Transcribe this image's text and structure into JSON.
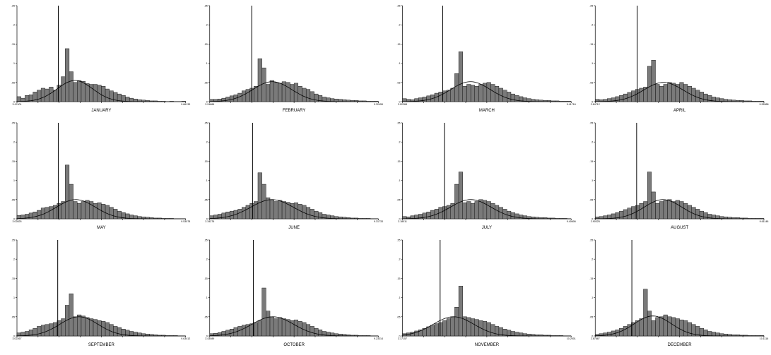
{
  "colors": {
    "bar_fill": "#7a7a7a",
    "bar_stroke": "#000000",
    "axis": "#000000",
    "curve": "#000000",
    "background": "#ffffff"
  },
  "chart_data": [
    {
      "type": "bar",
      "title": "JANUARY",
      "xlim": [
        3.47401,
        9.66133
      ],
      "ylim": [
        0,
        0.25
      ],
      "x_tick_labels": [
        "3.47401",
        "9.66133"
      ],
      "y_tick_labels": [
        "0",
        ".05",
        ".1",
        ".15",
        ".2",
        ".25"
      ],
      "spike": {
        "x": 4.99,
        "height": 0.25
      },
      "values": [
        0.013,
        0.009,
        0.016,
        0.018,
        0.025,
        0.03,
        0.035,
        0.033,
        0.038,
        0.03,
        0.043,
        0.065,
        0.138,
        0.078,
        0.05,
        0.055,
        0.053,
        0.047,
        0.045,
        0.045,
        0.043,
        0.04,
        0.033,
        0.028,
        0.024,
        0.02,
        0.016,
        0.012,
        0.009,
        0.007,
        0.005,
        0.004,
        0.003,
        0.002,
        0.002,
        0.001,
        0.001,
        0,
        0.001,
        0,
        0,
        0.001
      ],
      "normal_curve": {
        "mean": 5.6,
        "sd": 0.65,
        "peak": 0.055
      }
    },
    {
      "type": "bar",
      "title": "FEBRUARY",
      "xlim": [
        3.24666,
        9.32459
      ],
      "ylim": [
        0,
        0.25
      ],
      "x_tick_labels": [
        "3.24666",
        "9.32459"
      ],
      "y_tick_labels": [
        "0",
        ".05",
        ".1",
        ".15",
        ".2",
        ".25"
      ],
      "spike": {
        "x": 4.76,
        "height": 0.25
      },
      "values": [
        0.006,
        0.006,
        0.007,
        0.009,
        0.012,
        0.015,
        0.018,
        0.022,
        0.028,
        0.032,
        0.035,
        0.04,
        0.112,
        0.088,
        0.045,
        0.055,
        0.05,
        0.048,
        0.052,
        0.05,
        0.045,
        0.048,
        0.04,
        0.035,
        0.032,
        0.026,
        0.02,
        0.016,
        0.012,
        0.01,
        0.008,
        0.007,
        0.006,
        0.005,
        0.004,
        0.003,
        0.003,
        0.002,
        0.002,
        0.001,
        0.001,
        0.001
      ],
      "normal_curve": {
        "mean": 5.5,
        "sd": 0.7,
        "peak": 0.052
      }
    },
    {
      "type": "bar",
      "title": "MARCH",
      "xlim": [
        3.02268,
        9.41716
      ],
      "ylim": [
        0,
        0.25
      ],
      "x_tick_labels": [
        "3.02268",
        "9.41716"
      ],
      "y_tick_labels": [
        "0",
        ".05",
        ".1",
        ".15",
        ".2",
        ".25"
      ],
      "spike": {
        "x": 4.55,
        "height": 0.25
      },
      "values": [
        0.008,
        0.006,
        0.005,
        0.008,
        0.01,
        0.012,
        0.015,
        0.018,
        0.022,
        0.025,
        0.028,
        0.03,
        0.035,
        0.073,
        0.13,
        0.04,
        0.045,
        0.043,
        0.04,
        0.045,
        0.048,
        0.05,
        0.045,
        0.04,
        0.035,
        0.03,
        0.025,
        0.02,
        0.016,
        0.013,
        0.01,
        0.008,
        0.006,
        0.005,
        0.004,
        0.003,
        0.003,
        0.002,
        0.002,
        0.001,
        0.001,
        0.001
      ],
      "normal_curve": {
        "mean": 5.6,
        "sd": 0.75,
        "peak": 0.052
      }
    },
    {
      "type": "bar",
      "title": "APRIL",
      "xlim": [
        2.84712,
        9.28388
      ],
      "ylim": [
        0,
        0.25
      ],
      "x_tick_labels": [
        "2.84712",
        "9.28388"
      ],
      "y_tick_labels": [
        "0",
        ".05",
        ".1",
        ".15",
        ".2",
        ".25"
      ],
      "spike": {
        "x": 4.45,
        "height": 0.25
      },
      "values": [
        0.006,
        0.005,
        0.006,
        0.008,
        0.01,
        0.013,
        0.016,
        0.02,
        0.024,
        0.028,
        0.032,
        0.035,
        0.038,
        0.092,
        0.108,
        0.045,
        0.04,
        0.045,
        0.05,
        0.048,
        0.045,
        0.05,
        0.045,
        0.04,
        0.035,
        0.03,
        0.025,
        0.02,
        0.016,
        0.012,
        0.01,
        0.008,
        0.006,
        0.005,
        0.004,
        0.003,
        0.003,
        0.002,
        0.002,
        0.001,
        0.001,
        0.001
      ],
      "normal_curve": {
        "mean": 5.45,
        "sd": 0.75,
        "peak": 0.05
      }
    },
    {
      "type": "bar",
      "title": "MAY",
      "xlim": [
        3.02825,
        9.53078
      ],
      "ylim": [
        0,
        0.25
      ],
      "x_tick_labels": [
        "3.02825",
        "9.53078"
      ],
      "y_tick_labels": [
        "0",
        ".05",
        ".1",
        ".15",
        ".2",
        ".25"
      ],
      "spike": {
        "x": 4.62,
        "height": 0.25
      },
      "values": [
        0.009,
        0.01,
        0.012,
        0.015,
        0.018,
        0.022,
        0.028,
        0.03,
        0.032,
        0.035,
        0.04,
        0.045,
        0.14,
        0.09,
        0.045,
        0.04,
        0.045,
        0.048,
        0.045,
        0.04,
        0.042,
        0.038,
        0.035,
        0.03,
        0.025,
        0.02,
        0.016,
        0.013,
        0.01,
        0.008,
        0.006,
        0.005,
        0.004,
        0.003,
        0.002,
        0.002,
        0.001,
        0.001,
        0.001,
        0,
        0,
        0
      ],
      "normal_curve": {
        "mean": 5.3,
        "sd": 0.75,
        "peak": 0.05
      }
    },
    {
      "type": "bar",
      "title": "JUNE",
      "xlim": [
        3.34276,
        9.31733
      ],
      "ylim": [
        0,
        0.25
      ],
      "x_tick_labels": [
        "3.34276",
        "9.31733"
      ],
      "y_tick_labels": [
        "0",
        ".05",
        ".1",
        ".15",
        ".2",
        ".25"
      ],
      "spike": {
        "x": 4.86,
        "height": 0.25
      },
      "values": [
        0.008,
        0.01,
        0.012,
        0.015,
        0.018,
        0.02,
        0.022,
        0.025,
        0.03,
        0.035,
        0.04,
        0.045,
        0.12,
        0.09,
        0.055,
        0.05,
        0.045,
        0.048,
        0.045,
        0.043,
        0.04,
        0.042,
        0.038,
        0.035,
        0.03,
        0.025,
        0.02,
        0.016,
        0.012,
        0.01,
        0.008,
        0.006,
        0.005,
        0.004,
        0.003,
        0.002,
        0.002,
        0.001,
        0.001,
        0.001,
        0,
        0
      ],
      "normal_curve": {
        "mean": 5.55,
        "sd": 0.75,
        "peak": 0.05
      }
    },
    {
      "type": "bar",
      "title": "JULY",
      "xlim": [
        3.18011,
        9.40606
      ],
      "ylim": [
        0,
        0.25
      ],
      "x_tick_labels": [
        "3.18011",
        "9.40606"
      ],
      "y_tick_labels": [
        "0",
        ".05",
        ".1",
        ".15",
        ".2",
        ".25"
      ],
      "spike": {
        "x": 4.73,
        "height": 0.25
      },
      "values": [
        0.006,
        0.005,
        0.008,
        0.01,
        0.012,
        0.015,
        0.018,
        0.022,
        0.025,
        0.03,
        0.032,
        0.035,
        0.04,
        0.09,
        0.122,
        0.042,
        0.045,
        0.04,
        0.045,
        0.05,
        0.048,
        0.045,
        0.04,
        0.035,
        0.03,
        0.025,
        0.02,
        0.016,
        0.013,
        0.01,
        0.008,
        0.006,
        0.005,
        0.004,
        0.003,
        0.003,
        0.002,
        0.002,
        0.001,
        0.001,
        0.001,
        0
      ],
      "normal_curve": {
        "mean": 5.7,
        "sd": 0.75,
        "peak": 0.05
      }
    },
    {
      "type": "bar",
      "title": "AUGUST",
      "xlim": [
        2.90325,
        9.61148
      ],
      "ylim": [
        0,
        0.25
      ],
      "x_tick_labels": [
        "2.90325",
        "9.61148"
      ],
      "y_tick_labels": [
        "0",
        ".05",
        ".1",
        ".15",
        ".2",
        ".25"
      ],
      "spike": {
        "x": 4.55,
        "height": 0.25
      },
      "values": [
        0.005,
        0.006,
        0.008,
        0.01,
        0.013,
        0.016,
        0.02,
        0.024,
        0.028,
        0.032,
        0.035,
        0.04,
        0.045,
        0.122,
        0.07,
        0.04,
        0.045,
        0.048,
        0.05,
        0.045,
        0.048,
        0.045,
        0.04,
        0.035,
        0.03,
        0.025,
        0.02,
        0.016,
        0.012,
        0.01,
        0.008,
        0.006,
        0.005,
        0.004,
        0.003,
        0.003,
        0.002,
        0.002,
        0.001,
        0.001,
        0.001,
        0.001
      ],
      "normal_curve": {
        "mean": 5.6,
        "sd": 0.75,
        "peak": 0.05
      }
    },
    {
      "type": "bar",
      "title": "SEPTEMBER",
      "xlim": [
        3.02267,
        9.63412
      ],
      "ylim": [
        0,
        0.25
      ],
      "x_tick_labels": [
        "3.02267",
        "9.63412"
      ],
      "y_tick_labels": [
        "0",
        ".05",
        ".1",
        ".15",
        ".2",
        ".25"
      ],
      "spike": {
        "x": 4.62,
        "height": 0.25
      },
      "values": [
        0.008,
        0.01,
        0.012,
        0.016,
        0.02,
        0.025,
        0.028,
        0.03,
        0.032,
        0.035,
        0.04,
        0.045,
        0.08,
        0.11,
        0.05,
        0.055,
        0.052,
        0.048,
        0.045,
        0.043,
        0.04,
        0.038,
        0.035,
        0.03,
        0.025,
        0.022,
        0.018,
        0.015,
        0.012,
        0.01,
        0.008,
        0.006,
        0.005,
        0.004,
        0.003,
        0.002,
        0.002,
        0.001,
        0.001,
        0.001,
        0,
        0
      ],
      "normal_curve": {
        "mean": 5.45,
        "sd": 0.75,
        "peak": 0.05
      }
    },
    {
      "type": "bar",
      "title": "OCTOBER",
      "xlim": [
        3.43089,
        9.23314
      ],
      "ylim": [
        0,
        0.25
      ],
      "x_tick_labels": [
        "3.43089",
        "9.23314"
      ],
      "y_tick_labels": [
        "0",
        ".05",
        ".1",
        ".15",
        ".2",
        ".25"
      ],
      "spike": {
        "x": 4.93,
        "height": 0.25
      },
      "values": [
        0.006,
        0.007,
        0.009,
        0.012,
        0.015,
        0.018,
        0.022,
        0.025,
        0.028,
        0.03,
        0.032,
        0.035,
        0.04,
        0.125,
        0.065,
        0.05,
        0.045,
        0.048,
        0.045,
        0.043,
        0.04,
        0.042,
        0.038,
        0.035,
        0.03,
        0.025,
        0.02,
        0.016,
        0.012,
        0.01,
        0.008,
        0.006,
        0.005,
        0.004,
        0.003,
        0.002,
        0.002,
        0.001,
        0.001,
        0.001,
        0,
        0
      ],
      "normal_curve": {
        "mean": 5.6,
        "sd": 0.72,
        "peak": 0.05
      }
    },
    {
      "type": "bar",
      "title": "NOVEMBER",
      "xlim": [
        3.17157,
        10.2001
      ],
      "ylim": [
        0,
        0.25
      ],
      "x_tick_labels": [
        "3.17157",
        "10.2001"
      ],
      "y_tick_labels": [
        "0",
        ".05",
        ".1",
        ".15",
        ".2",
        ".25"
      ],
      "spike": {
        "x": 4.74,
        "height": 0.25
      },
      "values": [
        0.006,
        0.008,
        0.01,
        0.013,
        0.016,
        0.02,
        0.024,
        0.028,
        0.032,
        0.035,
        0.04,
        0.045,
        0.05,
        0.075,
        0.13,
        0.05,
        0.048,
        0.045,
        0.043,
        0.04,
        0.038,
        0.035,
        0.03,
        0.025,
        0.022,
        0.018,
        0.015,
        0.012,
        0.01,
        0.008,
        0.006,
        0.005,
        0.004,
        0.003,
        0.003,
        0.002,
        0.002,
        0.001,
        0.001,
        0.001,
        0,
        0
      ],
      "normal_curve": {
        "mean": 5.3,
        "sd": 0.85,
        "peak": 0.05
      }
    },
    {
      "type": "bar",
      "title": "DECEMBER",
      "xlim": [
        2.87887,
        10.1116
      ],
      "ylim": [
        0,
        0.25
      ],
      "x_tick_labels": [
        "2.87887",
        "10.1116"
      ],
      "y_tick_labels": [
        "0",
        ".05",
        ".1",
        ".15",
        ".2",
        ".25"
      ],
      "spike": {
        "x": 4.45,
        "height": 0.25
      },
      "values": [
        0.004,
        0.006,
        0.008,
        0.01,
        0.013,
        0.016,
        0.02,
        0.025,
        0.03,
        0.035,
        0.04,
        0.045,
        0.122,
        0.065,
        0.04,
        0.048,
        0.05,
        0.055,
        0.05,
        0.048,
        0.045,
        0.042,
        0.04,
        0.035,
        0.03,
        0.025,
        0.02,
        0.016,
        0.012,
        0.01,
        0.008,
        0.006,
        0.005,
        0.004,
        0.003,
        0.003,
        0.002,
        0.002,
        0.001,
        0.001,
        0.001,
        0.001
      ],
      "normal_curve": {
        "mean": 5.35,
        "sd": 0.8,
        "peak": 0.052
      }
    }
  ]
}
